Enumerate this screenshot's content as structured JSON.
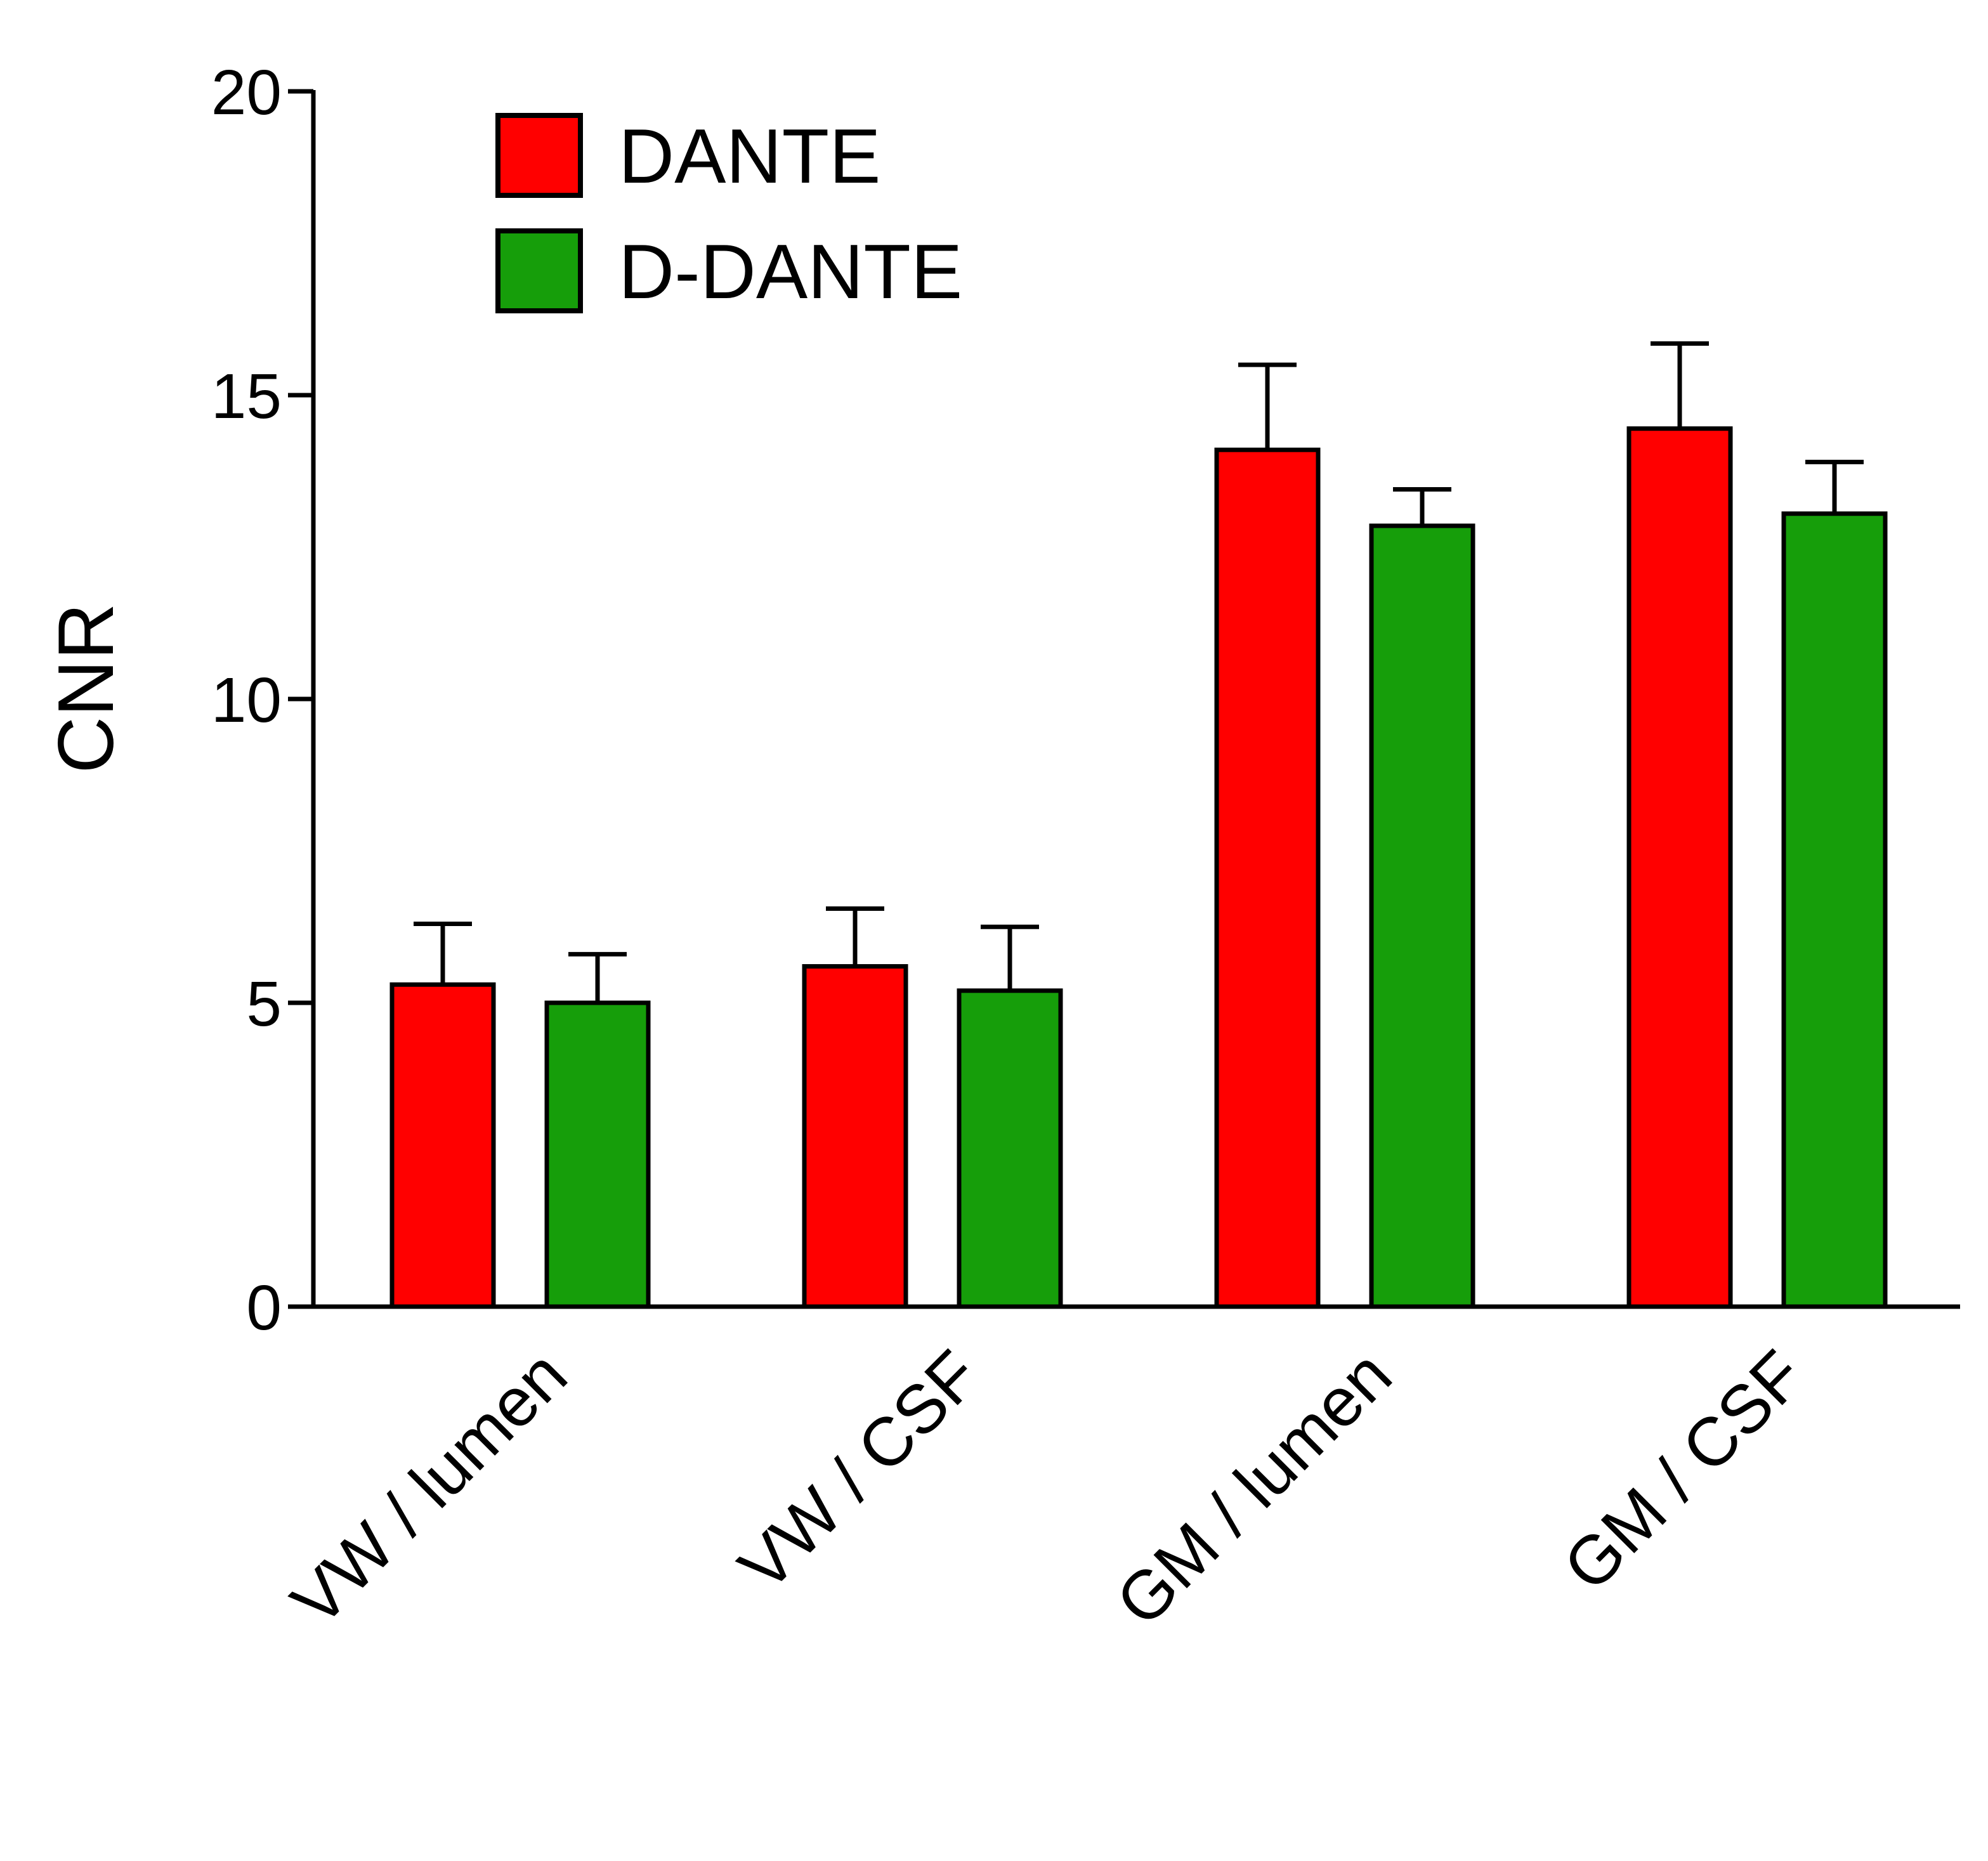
{
  "chart_data": {
    "type": "bar",
    "title": "",
    "xlabel": "",
    "ylabel": "CNR",
    "ylim": [
      0,
      20
    ],
    "yticks": [
      "0",
      "5",
      "10",
      "15",
      "20"
    ],
    "categories": [
      "VW / lumen",
      "VW / CSF",
      "GM / lumen",
      "GM / CSF"
    ],
    "series": [
      {
        "name": "DANTE",
        "color": "#ff0000",
        "values": [
          5.3,
          5.6,
          14.1,
          14.45
        ],
        "errors": [
          1.0,
          0.95,
          1.4,
          1.4
        ]
      },
      {
        "name": "D-DANTE",
        "color": "#169e0a",
        "values": [
          5.0,
          5.2,
          12.85,
          13.05
        ],
        "errors": [
          0.8,
          1.05,
          0.6,
          0.85
        ]
      }
    ],
    "error_bars": "upper",
    "legend_position": "top-left",
    "grid": false
  }
}
